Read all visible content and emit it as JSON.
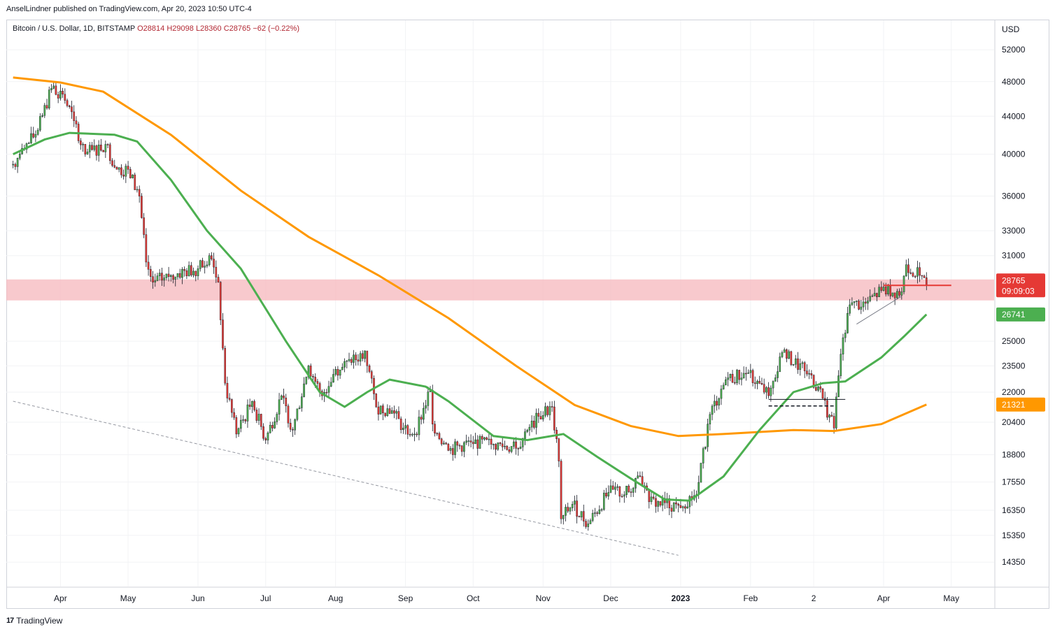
{
  "header": {
    "publisher_line": "AnselLindner published on TradingView.com, Apr 20, 2023 10:50 UTC-4"
  },
  "symbol": {
    "name": "Bitcoin / U.S. Dollar, 1D, BITSTAMP",
    "open": "O28814",
    "high": "H29098",
    "low": "L28360",
    "close": "C28765",
    "change": "−62 (−0.22%)"
  },
  "footer": {
    "brand": "TradingView",
    "logo_text": "17"
  },
  "chart_data": {
    "type": "candlestick",
    "currency_label": "USD",
    "y_scale": "log",
    "y_ticks": [
      52000,
      48000,
      44000,
      40000,
      36000,
      33000,
      31000,
      25000,
      23500,
      22000,
      20400,
      18800,
      17550,
      16350,
      15350,
      14350
    ],
    "x_tick_labels": [
      {
        "label": "Apr",
        "date": "2022-04-01"
      },
      {
        "label": "May",
        "date": "2022-05-01"
      },
      {
        "label": "Jun",
        "date": "2022-06-01"
      },
      {
        "label": "Jul",
        "date": "2022-07-01"
      },
      {
        "label": "Aug",
        "date": "2022-08-01"
      },
      {
        "label": "Sep",
        "date": "2022-09-01"
      },
      {
        "label": "Oct",
        "date": "2022-10-01"
      },
      {
        "label": "Nov",
        "date": "2022-11-01"
      },
      {
        "label": "Dec",
        "date": "2022-12-01"
      },
      {
        "label": "2023",
        "date": "2023-01-01",
        "bold": true
      },
      {
        "label": "Feb",
        "date": "2023-02-01"
      },
      {
        "label": "2",
        "date": "2023-03-01"
      },
      {
        "label": "Apr",
        "date": "2023-04-01"
      },
      {
        "label": "May",
        "date": "2023-05-01"
      }
    ],
    "price_key_points": [
      [
        "2022-03-11",
        39000
      ],
      [
        "2022-03-16",
        40500
      ],
      [
        "2022-03-22",
        42500
      ],
      [
        "2022-03-28",
        47200
      ],
      [
        "2022-04-02",
        46500
      ],
      [
        "2022-04-07",
        43500
      ],
      [
        "2022-04-12",
        40000
      ],
      [
        "2022-04-21",
        41000
      ],
      [
        "2022-04-26",
        38500
      ],
      [
        "2022-05-01",
        38500
      ],
      [
        "2022-05-06",
        36000
      ],
      [
        "2022-05-09",
        30500
      ],
      [
        "2022-05-12",
        29000
      ],
      [
        "2022-05-20",
        29500
      ],
      [
        "2022-06-01",
        30000
      ],
      [
        "2022-06-06",
        31000
      ],
      [
        "2022-06-10",
        29000
      ],
      [
        "2022-06-13",
        22500
      ],
      [
        "2022-06-18",
        19800
      ],
      [
        "2022-06-25",
        21500
      ],
      [
        "2022-07-01",
        19500
      ],
      [
        "2022-07-08",
        21800
      ],
      [
        "2022-07-13",
        20000
      ],
      [
        "2022-07-20",
        23500
      ],
      [
        "2022-07-26",
        21800
      ],
      [
        "2022-08-01",
        23300
      ],
      [
        "2022-08-08",
        23700
      ],
      [
        "2022-08-14",
        24400
      ],
      [
        "2022-08-19",
        21200
      ],
      [
        "2022-08-26",
        21000
      ],
      [
        "2022-08-31",
        20100
      ],
      [
        "2022-09-05",
        19800
      ],
      [
        "2022-09-12",
        22100
      ],
      [
        "2022-09-13",
        20300
      ],
      [
        "2022-09-20",
        19000
      ],
      [
        "2022-09-30",
        19400
      ],
      [
        "2022-10-10",
        19300
      ],
      [
        "2022-10-20",
        19100
      ],
      [
        "2022-10-25",
        20000
      ],
      [
        "2022-10-30",
        20700
      ],
      [
        "2022-11-05",
        21200
      ],
      [
        "2022-11-08",
        18500
      ],
      [
        "2022-11-09",
        16000
      ],
      [
        "2022-11-14",
        16600
      ],
      [
        "2022-11-21",
        15800
      ],
      [
        "2022-11-30",
        17100
      ],
      [
        "2022-12-10",
        17100
      ],
      [
        "2022-12-14",
        17800
      ],
      [
        "2022-12-18",
        16700
      ],
      [
        "2022-12-31",
        16550
      ],
      [
        "2023-01-08",
        17000
      ],
      [
        "2023-01-14",
        20800
      ],
      [
        "2023-01-21",
        22700
      ],
      [
        "2023-01-31",
        23100
      ],
      [
        "2023-02-09",
        21800
      ],
      [
        "2023-02-15",
        24300
      ],
      [
        "2023-02-25",
        23200
      ],
      [
        "2023-03-03",
        22300
      ],
      [
        "2023-03-10",
        20100
      ],
      [
        "2023-03-13",
        24200
      ],
      [
        "2023-03-17",
        27400
      ],
      [
        "2023-03-24",
        27500
      ],
      [
        "2023-03-31",
        28400
      ],
      [
        "2023-04-09",
        28300
      ],
      [
        "2023-04-11",
        30300
      ],
      [
        "2023-04-17",
        29500
      ],
      [
        "2023-04-20",
        28765
      ]
    ],
    "ma_50_color": "#4caf50",
    "ma_50": [
      [
        "2022-03-11",
        40000
      ],
      [
        "2022-03-25",
        41500
      ],
      [
        "2022-04-05",
        42200
      ],
      [
        "2022-04-25",
        42000
      ],
      [
        "2022-05-05",
        41300
      ],
      [
        "2022-05-20",
        37500
      ],
      [
        "2022-06-05",
        33000
      ],
      [
        "2022-06-20",
        30000
      ],
      [
        "2022-07-10",
        25000
      ],
      [
        "2022-07-25",
        22000
      ],
      [
        "2022-08-05",
        21200
      ],
      [
        "2022-08-15",
        22000
      ],
      [
        "2022-08-25",
        22700
      ],
      [
        "2022-09-10",
        22300
      ],
      [
        "2022-09-20",
        21500
      ],
      [
        "2022-10-10",
        19700
      ],
      [
        "2022-10-25",
        19500
      ],
      [
        "2022-11-10",
        19800
      ],
      [
        "2022-11-25",
        18700
      ],
      [
        "2022-12-10",
        17700
      ],
      [
        "2022-12-25",
        16800
      ],
      [
        "2023-01-05",
        16750
      ],
      [
        "2023-01-20",
        17800
      ],
      [
        "2023-02-05",
        20000
      ],
      [
        "2023-02-20",
        22000
      ],
      [
        "2023-03-05",
        22500
      ],
      [
        "2023-03-15",
        22600
      ],
      [
        "2023-03-31",
        24000
      ],
      [
        "2023-04-10",
        25300
      ],
      [
        "2023-04-20",
        26741
      ]
    ],
    "ma_200_color": "#ff9800",
    "ma_200": [
      [
        "2022-03-11",
        48500
      ],
      [
        "2022-04-01",
        47900
      ],
      [
        "2022-04-20",
        46800
      ],
      [
        "2022-05-20",
        42000
      ],
      [
        "2022-06-20",
        36500
      ],
      [
        "2022-07-20",
        32500
      ],
      [
        "2022-08-20",
        29500
      ],
      [
        "2022-09-20",
        26500
      ],
      [
        "2022-10-20",
        23500
      ],
      [
        "2022-11-15",
        21300
      ],
      [
        "2022-12-10",
        20200
      ],
      [
        "2022-12-31",
        19700
      ],
      [
        "2023-01-20",
        19800
      ],
      [
        "2023-02-20",
        20000
      ],
      [
        "2023-03-10",
        19950
      ],
      [
        "2023-03-31",
        20300
      ],
      [
        "2023-04-20",
        21321
      ]
    ],
    "resistance_zone": {
      "low": 27700,
      "high": 29200,
      "color": "#f6b7bc"
    },
    "current_price_line": {
      "start": "2023-04-01",
      "end": "2023-05-01",
      "price": 28765,
      "color": "#e53935"
    },
    "annotations": {
      "descending_trendline": {
        "start": [
          "2022-03-11",
          21500
        ],
        "end": [
          "2022-12-31",
          14600
        ]
      },
      "rising_line": {
        "start": [
          "2023-03-20",
          26100
        ],
        "end": [
          "2023-04-09",
          28000
        ]
      },
      "support_solid": {
        "start": [
          "2023-02-09",
          21600
        ],
        "end": [
          "2023-03-15",
          21600
        ]
      },
      "support_dashed": {
        "start": [
          "2023-02-09",
          21250
        ],
        "end": [
          "2023-03-10",
          21250
        ]
      }
    },
    "price_labels": [
      {
        "text": "28765",
        "subtext": "09:09:03",
        "price": 28765,
        "color": "#e53935"
      },
      {
        "text": "26741",
        "price": 26741,
        "color": "#4caf50"
      },
      {
        "text": "21321",
        "price": 21321,
        "color": "#ff9800"
      }
    ]
  }
}
